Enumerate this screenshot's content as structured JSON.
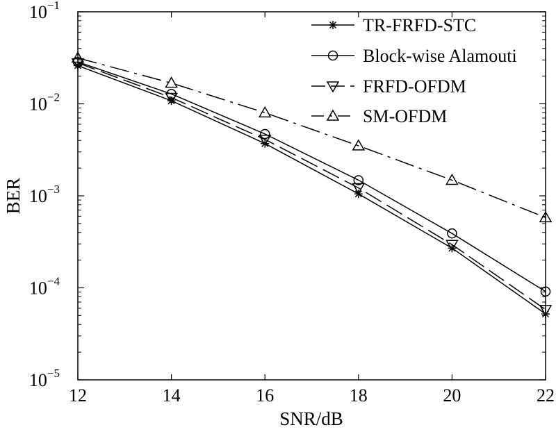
{
  "chart_data": {
    "type": "line",
    "title": "",
    "xlabel": "SNR/dB",
    "ylabel": "BER",
    "x": [
      12,
      14,
      16,
      18,
      20,
      22
    ],
    "xlim": [
      12,
      22
    ],
    "ylim": [
      1e-05,
      0.1
    ],
    "yscale": "log",
    "xticks": [
      "12",
      "14",
      "16",
      "18",
      "20",
      "22"
    ],
    "yticks": [
      {
        "base": "10",
        "exp": "−5"
      },
      {
        "base": "10",
        "exp": "−4"
      },
      {
        "base": "10",
        "exp": "−3"
      },
      {
        "base": "10",
        "exp": "−2"
      },
      {
        "base": "10",
        "exp": "−1"
      }
    ],
    "legend_position": "top-right",
    "grid": false,
    "series": [
      {
        "name": "TR-FRFD-STC",
        "marker": "star",
        "dash": "solid",
        "values": [
          0.026,
          0.0108,
          0.0037,
          0.00105,
          0.00027,
          5.2e-05
        ]
      },
      {
        "name": "Block-wise Alamouti",
        "marker": "circle",
        "dash": "solid",
        "values": [
          0.0285,
          0.0128,
          0.0047,
          0.00148,
          0.00039,
          9.1e-05
        ]
      },
      {
        "name": "FRFD-OFDM",
        "marker": "triangle-down",
        "dash": "longdash",
        "values": [
          0.0278,
          0.0117,
          0.0041,
          0.00122,
          0.000295,
          5.8e-05
        ]
      },
      {
        "name": "SM-OFDM",
        "marker": "triangle-up",
        "dash": "dashdot",
        "values": [
          0.0315,
          0.0168,
          0.008,
          0.0035,
          0.00148,
          0.00058
        ]
      }
    ]
  }
}
